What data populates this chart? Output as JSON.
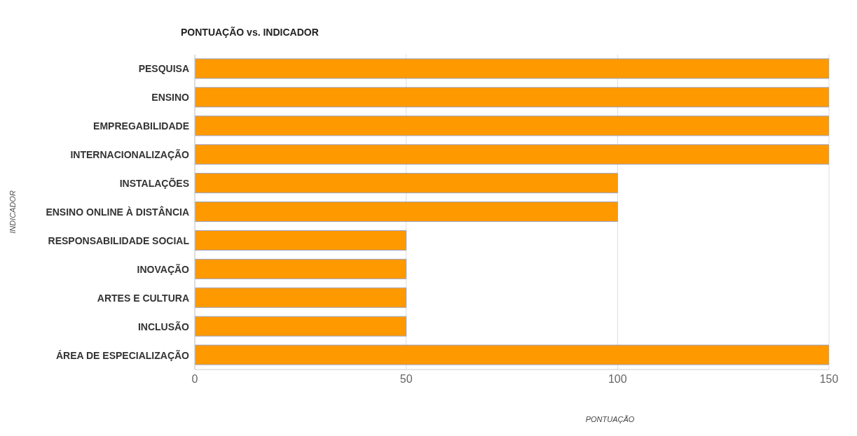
{
  "chart_data": {
    "type": "bar",
    "orientation": "horizontal",
    "title": "PONTUAÇÃO vs. INDICADOR",
    "xlabel": "PONTUAÇÃO",
    "ylabel": "INDICADOR",
    "categories": [
      "PESQUISA",
      "ENSINO",
      "EMPREGABILIDADE",
      "INTERNACIONALIZAÇÃO",
      "INSTALAÇÕES",
      "ENSINO ONLINE À DISTÂNCIA",
      "RESPONSABILIDADE SOCIAL",
      "INOVAÇÃO",
      "ARTES E CULTURA",
      "INCLUSÃO",
      "ÁREA DE ESPECIALIZAÇÃO"
    ],
    "values": [
      150,
      150,
      150,
      150,
      100,
      100,
      50,
      50,
      50,
      50,
      150
    ],
    "color": "#ff9900",
    "xlim": [
      0,
      150
    ],
    "xticks": [
      0,
      50,
      100,
      150
    ],
    "grid": "x"
  }
}
